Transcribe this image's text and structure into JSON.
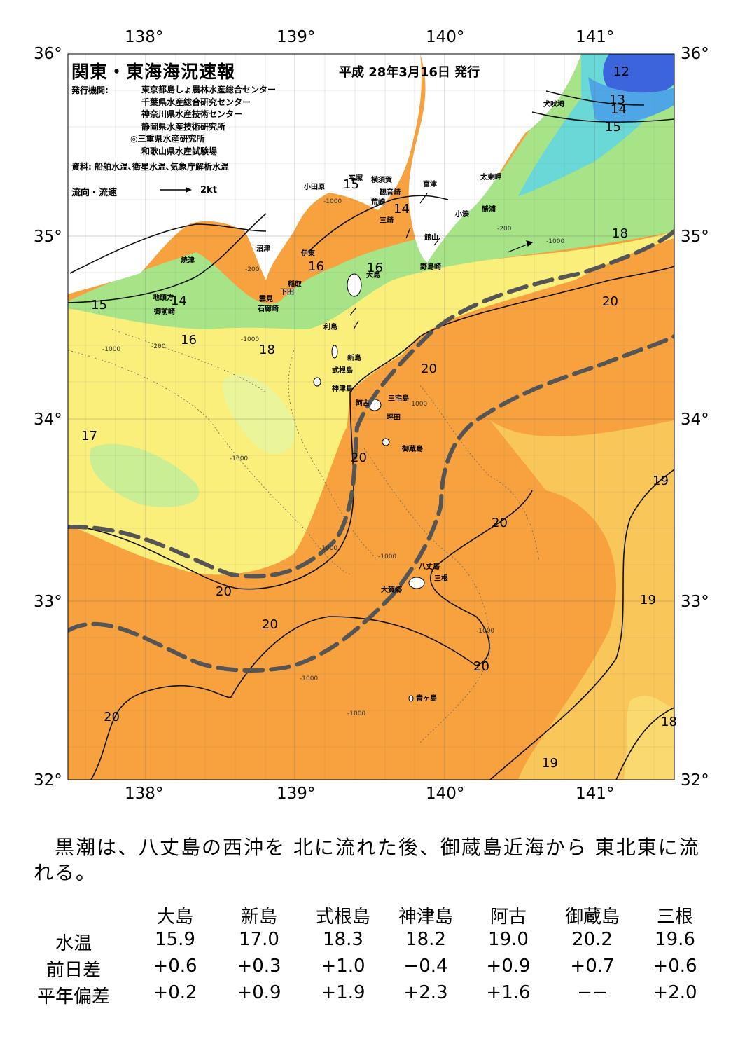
{
  "map": {
    "title": "関東・東海海況速報",
    "issue_date": "平成 28年3月16日 発行",
    "institutions_label": "発行機関:",
    "institutions": [
      "東京都島しょ農林水産総合センター",
      "千葉県水産総合研究センター",
      "神奈川県水産技術センター",
      "静岡県水産技術研究所",
      "◎三重県水産研究所",
      "和歌山県水産試験場"
    ],
    "source": "資料: 船舶水温､衛星水温､気象庁解析水温",
    "flow_legend_label": "流向・流速",
    "flow_legend_unit": "2kt",
    "lon_labels": [
      "138°",
      "139°",
      "140°",
      "141°"
    ],
    "lat_labels": [
      "36°",
      "35°",
      "34°",
      "33°",
      "32°"
    ],
    "place_names": [
      "犬吠埼",
      "太東岬",
      "勝浦",
      "小湊",
      "富津",
      "館山",
      "野島崎",
      "横須賀",
      "観音崎",
      "平塚",
      "小田原",
      "荒崎",
      "三崎",
      "伊東",
      "稲取",
      "下田",
      "雲見",
      "石廊崎",
      "沼津",
      "焼津",
      "地頭方",
      "御前崎",
      "大島",
      "利島",
      "新島",
      "式根島",
      "神津島",
      "三宅島",
      "阿古",
      "坪田",
      "御蔵島",
      "八丈島",
      "三根",
      "大賀郷",
      "青ヶ島"
    ],
    "isotherm_labels": [
      "12",
      "13",
      "14",
      "15",
      "15",
      "15",
      "14",
      "14",
      "16",
      "16",
      "16",
      "17",
      "18",
      "18",
      "19",
      "19",
      "19",
      "18",
      "20",
      "20",
      "20",
      "20",
      "20",
      "20",
      "20",
      "20"
    ],
    "depth_labels": [
      "-200",
      "-1000"
    ],
    "colors": {
      "kuroshio_axis": "#555555",
      "warm_water": "#f7a03c",
      "cool_water": "#9de57a",
      "cold_water": "#3a66e0",
      "land": "#ffffff"
    }
  },
  "summary": "　黒潮は、八丈島の西沖を 北に流れた後、御蔵島近海から 東北東に流れる。",
  "table": {
    "headers": [
      "大島",
      "新島",
      "式根島",
      "神津島",
      "阿古",
      "御蔵島",
      "三根"
    ],
    "rows": [
      {
        "label": "水温",
        "values": [
          "15.9",
          "17.0",
          "18.3",
          "18.2",
          "19.0",
          "20.2",
          "19.6"
        ]
      },
      {
        "label": "前日差",
        "values": [
          "+0.6",
          "+0.3",
          "+1.0",
          "−0.4",
          "+0.9",
          "+0.7",
          "+0.6"
        ]
      },
      {
        "label": "平年偏差",
        "values": [
          "+0.2",
          "+0.9",
          "+1.9",
          "+2.3",
          "+1.6",
          "−−",
          "+2.0"
        ]
      }
    ]
  }
}
